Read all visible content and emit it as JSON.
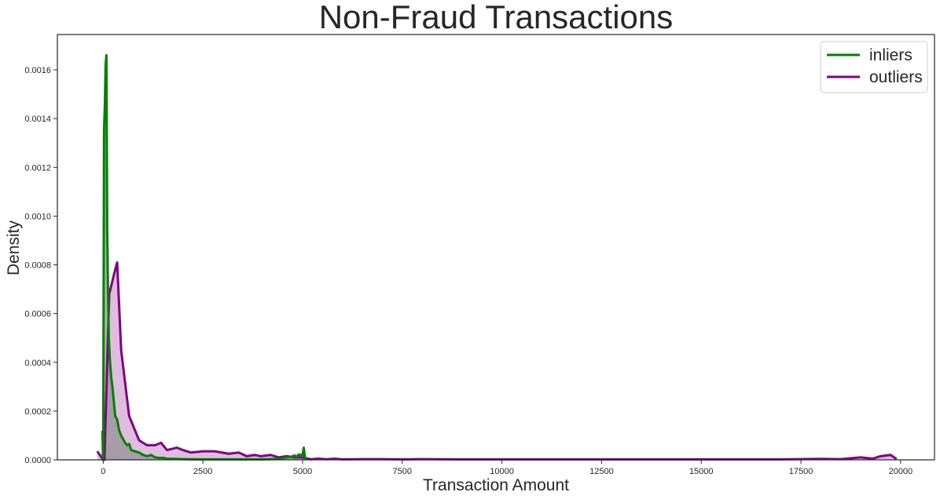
{
  "chart_data": {
    "type": "area",
    "title": "Non-Fraud Transactions",
    "xlabel": "Transaction Amount",
    "ylabel": "Density",
    "xlim": [
      -1150,
      20850
    ],
    "ylim": [
      0,
      0.001745
    ],
    "x_ticks": [
      0,
      2500,
      5000,
      7500,
      10000,
      12500,
      15000,
      17500,
      20000
    ],
    "x_tick_labels": [
      "0",
      "2500",
      "5000",
      "7500",
      "10000",
      "12500",
      "15000",
      "17500",
      "20000"
    ],
    "y_ticks": [
      0,
      0.0002,
      0.0004,
      0.0006,
      0.0008,
      0.001,
      0.0012,
      0.0014,
      0.0016
    ],
    "y_tick_labels": [
      "0.0000",
      "0.0002",
      "0.0004",
      "0.0006",
      "0.0008",
      "0.0010",
      "0.0012",
      "0.0014",
      "0.0016"
    ],
    "grid": false,
    "legend_position": "top-right",
    "series": [
      {
        "name": "inliers",
        "color": "#008000",
        "fill": "#8a8a8a",
        "x": [
          -20,
          -5,
          0,
          20,
          40,
          60,
          80,
          100,
          120,
          140,
          160,
          180,
          200,
          230,
          260,
          300,
          350,
          400,
          450,
          500,
          550,
          600,
          650,
          700,
          800,
          900,
          1000,
          1100,
          1200,
          1300,
          1400,
          1500,
          1600,
          1800,
          2000,
          2500,
          3000,
          3500,
          4000,
          4400,
          4600,
          4700,
          4800,
          4850,
          4900,
          4950,
          5000,
          5030,
          5060,
          5100
        ],
        "y": [
          0.00012,
          0.0,
          0.0,
          0.00135,
          0.00145,
          0.00162,
          0.00166,
          0.00095,
          0.0007,
          0.0005,
          0.00043,
          0.00038,
          0.00034,
          0.0003,
          0.00025,
          0.00018,
          0.000165,
          0.00012,
          0.0001,
          8.5e-05,
          7e-05,
          6e-05,
          6.5e-05,
          4e-05,
          3.5e-05,
          3e-05,
          2e-05,
          1.5e-05,
          2e-05,
          1e-05,
          8e-06,
          8e-06,
          5e-06,
          4e-06,
          3e-06,
          2e-06,
          2e-06,
          2e-06,
          2e-06,
          4e-06,
          1e-05,
          1.2e-05,
          1.8e-05,
          1.2e-05,
          2.2e-05,
          2e-05,
          2e-05,
          5e-05,
          1e-05,
          0.0
        ]
      },
      {
        "name": "outliers",
        "color": "#800080",
        "fill": "#dcb6dc",
        "x": [
          -150,
          0,
          30,
          150,
          300,
          350,
          450,
          650,
          900,
          1100,
          1300,
          1450,
          1600,
          1850,
          2000,
          2200,
          2500,
          2800,
          3150,
          3400,
          3600,
          3800,
          3950,
          4200,
          4400,
          4600,
          4800,
          5000,
          5200,
          5400,
          5600,
          5800,
          6000,
          6500,
          7000,
          7500,
          8000,
          9000,
          10000,
          11000,
          12000,
          13000,
          14000,
          15000,
          16000,
          17000,
          18000,
          18500,
          19000,
          19300,
          19500,
          19750,
          19900
        ],
        "y": [
          3.5e-05,
          0.0,
          0.0,
          0.00068,
          0.00078,
          0.00081,
          0.00045,
          0.00018,
          8e-05,
          6e-05,
          6e-05,
          7e-05,
          4e-05,
          5e-05,
          4e-05,
          3e-05,
          3.5e-05,
          3.5e-05,
          2.5e-05,
          3e-05,
          1.5e-05,
          2e-05,
          1.5e-05,
          2e-05,
          1e-05,
          1.5e-05,
          1e-05,
          1e-05,
          2.5e-06,
          5e-06,
          2.5e-06,
          5e-06,
          2e-06,
          3e-06,
          3e-06,
          2e-06,
          3e-06,
          2e-06,
          2e-06,
          2e-06,
          2e-06,
          2e-06,
          2e-06,
          2e-06,
          2e-06,
          2e-06,
          4e-06,
          3e-06,
          1e-05,
          5e-06,
          1.5e-05,
          2e-05,
          3e-06
        ]
      }
    ]
  }
}
